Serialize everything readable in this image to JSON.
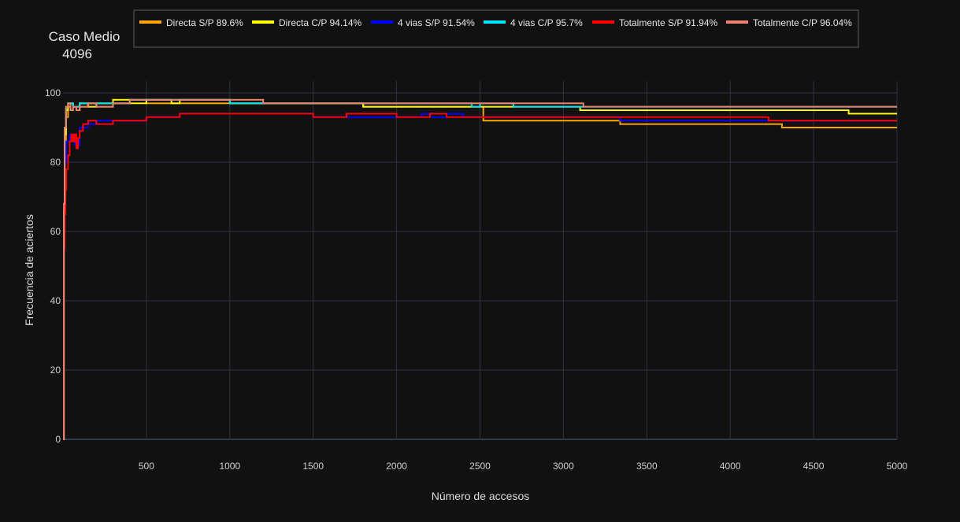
{
  "chart_data": {
    "type": "line",
    "title_lines": [
      "Caso Medio",
      "4096"
    ],
    "xlabel": "Número de accesos",
    "ylabel": "Frecuencia de aciertos",
    "xlim": [
      0,
      5000
    ],
    "ylim": [
      0,
      100
    ],
    "xticks": [
      500,
      1000,
      1500,
      2000,
      2500,
      3000,
      3500,
      4000,
      4500,
      5000
    ],
    "yticks": [
      0,
      20,
      40,
      60,
      80,
      100
    ],
    "grid": true,
    "legend_position": "top",
    "series": [
      {
        "name": "Directa S/P 89.6%",
        "color": "#ffa500",
        "x": [
          0,
          5,
          10,
          18,
          30,
          45,
          60,
          80,
          100,
          150,
          200,
          300,
          400,
          500,
          1000,
          1800,
          2500,
          2520,
          3300,
          3340,
          3400,
          4300,
          4310,
          5000
        ],
        "y": [
          0,
          60,
          85,
          93,
          96,
          95,
          96,
          95,
          96,
          97,
          96,
          97,
          98,
          97,
          97,
          96,
          96,
          92,
          92,
          91,
          91,
          91,
          90,
          90
        ]
      },
      {
        "name": "Directa C/P 94.14%",
        "color": "#ffff00",
        "x": [
          0,
          5,
          10,
          18,
          30,
          60,
          100,
          150,
          200,
          300,
          400,
          500,
          650,
          700,
          1000,
          1200,
          1300,
          1800,
          2500,
          3000,
          3100,
          3130,
          4700,
          4710,
          5000
        ],
        "y": [
          0,
          65,
          88,
          95,
          97,
          96,
          97,
          96,
          97,
          98,
          97,
          98,
          97,
          98,
          97,
          97,
          97,
          96,
          96,
          96,
          95,
          95,
          95,
          94,
          94
        ]
      },
      {
        "name": "4 vias S/P 91.54%",
        "color": "#0000ff",
        "x": [
          0,
          5,
          10,
          20,
          40,
          70,
          100,
          150,
          200,
          300,
          400,
          500,
          700,
          1000,
          1500,
          2000,
          2150,
          2200,
          2300,
          2400,
          3300,
          3340,
          4200,
          4230,
          5000
        ],
        "y": [
          0,
          62,
          80,
          86,
          88,
          85,
          90,
          91,
          92,
          92,
          92,
          93,
          94,
          94,
          93,
          93,
          94,
          93,
          94,
          93,
          93,
          92,
          92,
          92,
          92
        ]
      },
      {
        "name": "4 vias C/P 95.7%",
        "color": "#00e5ff",
        "x": [
          0,
          5,
          10,
          18,
          30,
          60,
          100,
          200,
          300,
          400,
          500,
          1000,
          1500,
          2000,
          2450,
          2500,
          2700,
          3000,
          3100,
          3120,
          5000
        ],
        "y": [
          0,
          66,
          90,
          96,
          97,
          96,
          97,
          97,
          97,
          98,
          98,
          97,
          97,
          97,
          96,
          97,
          96,
          96,
          96,
          96,
          96
        ]
      },
      {
        "name": "Totalmente S/P 91.94%",
        "color": "#ff0000",
        "x": [
          0,
          5,
          10,
          15,
          20,
          30,
          40,
          50,
          60,
          70,
          80,
          90,
          100,
          120,
          150,
          200,
          300,
          400,
          500,
          700,
          1000,
          1500,
          1700,
          2000,
          2200,
          2300,
          3000,
          3300,
          4200,
          4230,
          5000
        ],
        "y": [
          0,
          55,
          65,
          72,
          78,
          82,
          86,
          88,
          86,
          88,
          84,
          87,
          89,
          91,
          92,
          91,
          92,
          92,
          93,
          94,
          94,
          93,
          94,
          93,
          94,
          93,
          93,
          93,
          93,
          92,
          92
        ]
      },
      {
        "name": "Totalmente C/P 96.04%",
        "color": "#f08070",
        "x": [
          0,
          5,
          10,
          18,
          30,
          45,
          60,
          80,
          100,
          150,
          200,
          300,
          400,
          500,
          1000,
          1200,
          1800,
          2800,
          2900,
          3100,
          3120,
          5000
        ],
        "y": [
          0,
          68,
          90,
          96,
          97,
          95,
          96,
          95,
          96,
          97,
          96,
          97,
          98,
          98,
          98,
          97,
          97,
          97,
          97,
          97,
          96,
          96
        ]
      }
    ]
  }
}
